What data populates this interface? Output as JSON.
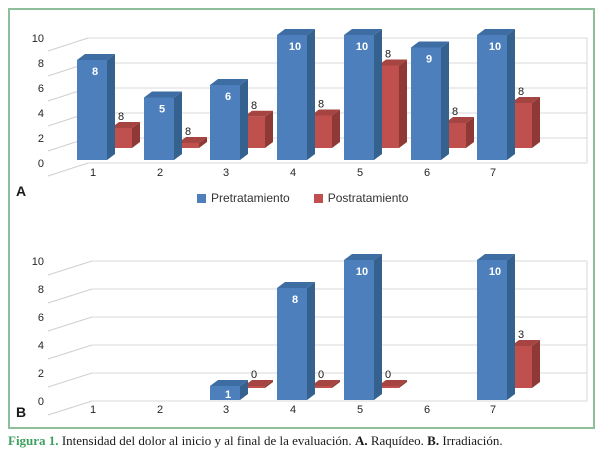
{
  "colors": {
    "frame_border": "#8fbe9a",
    "caption_label_green": "#3ea05f",
    "pretratamiento_blue": "#4c7fbc",
    "postratamiento_red": "#c0504d",
    "gridline": "#d9d9d9",
    "axis_text": "#262626"
  },
  "panels": {
    "a": "A",
    "b": "B"
  },
  "legend": {
    "items": [
      {
        "label": "Pretratamiento",
        "color": "#4c7fbc"
      },
      {
        "label": "Postratamiento",
        "color": "#c0504d"
      }
    ]
  },
  "caption": {
    "label": "Figura 1.",
    "body": " Intensidad del dolor al inicio y al final de la evaluación. ",
    "a_bold": "A.",
    "a_text": " Raquídeo. ",
    "b_bold": "B.",
    "b_text": " Irradiación.",
    "full": "Figura 1. Intensidad del dolor al inicio y al final de la evaluación. A. Raquídeo. B. Irradiación."
  },
  "chart_data": [
    {
      "id": "A",
      "panel_label": "A",
      "type": "bar",
      "style": "3d-bar",
      "title": "",
      "categories": [
        "1",
        "2",
        "3",
        "4",
        "5",
        "6",
        "7"
      ],
      "xlabel": "",
      "ylabel": "",
      "ylim": [
        0,
        10
      ],
      "yticks": [
        "0",
        "2",
        "4",
        "6",
        "8",
        "10"
      ],
      "grid": true,
      "legend_position": "bottom",
      "series": [
        {
          "name": "Pretratamiento",
          "colors": {
            "front": "#4c7fbc",
            "side": "#35618f",
            "top": "#3e6da3"
          },
          "values": [
            8,
            5,
            6,
            10,
            10,
            9,
            10
          ],
          "data_labels": [
            "8",
            "5",
            "6",
            "10",
            "10",
            "9",
            "10"
          ],
          "label_style": "inside-white"
        },
        {
          "name": "Postratamiento",
          "colors": {
            "front": "#c0504d",
            "side": "#8e3936",
            "top": "#a54440"
          },
          "values": [
            8,
            8,
            8,
            8,
            8,
            8,
            8
          ],
          "drawn_heights": [
            1.6,
            0.4,
            2.5,
            2.6,
            6.6,
            2.0,
            3.6
          ],
          "data_labels": [
            "8",
            "8",
            "8",
            "8",
            "8",
            "8",
            "8"
          ],
          "label_style": "above-black"
        }
      ]
    },
    {
      "id": "B",
      "panel_label": "B",
      "type": "bar",
      "style": "3d-bar",
      "title": "",
      "categories": [
        "1",
        "2",
        "3",
        "4",
        "5",
        "6",
        "7"
      ],
      "xlabel": "",
      "ylabel": "",
      "ylim": [
        0,
        10
      ],
      "yticks": [
        "0",
        "2",
        "4",
        "6",
        "8",
        "10"
      ],
      "grid": true,
      "legend_position": "none",
      "series": [
        {
          "name": "Pretratamiento",
          "colors": {
            "front": "#4c7fbc",
            "side": "#35618f",
            "top": "#3e6da3"
          },
          "values": [
            null,
            null,
            1,
            8,
            10,
            null,
            10
          ],
          "data_labels": [
            "",
            "",
            "1",
            "8",
            "10",
            "",
            "10"
          ],
          "label_style": "inside-white"
        },
        {
          "name": "Postratamiento",
          "colors": {
            "front": "#c0504d",
            "side": "#8e3936",
            "top": "#a54440"
          },
          "values": [
            null,
            null,
            0,
            0,
            0,
            null,
            3
          ],
          "data_labels": [
            "",
            "",
            "0",
            "0",
            "0",
            "",
            "3"
          ],
          "label_style": "above-black"
        }
      ]
    }
  ]
}
